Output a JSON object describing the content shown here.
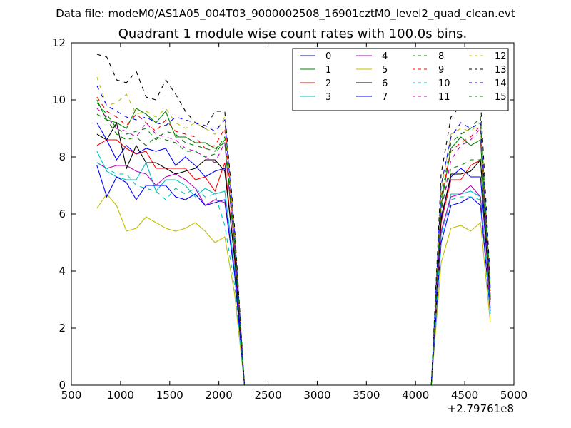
{
  "chart_data": {
    "type": "line",
    "suptitle": "Data file: modeM0/AS1A05_004T03_9000002508_16901cztM0_level2_quad_clean.evt",
    "title": "Quadrant 1 module wise count rates with 100.0s bins.",
    "xlabel": "",
    "ylabel": "",
    "x_offset_label": "+2.79761e8",
    "xlim": [
      500,
      5000
    ],
    "ylim": [
      0,
      12
    ],
    "xticks": [
      "500",
      "1000",
      "1500",
      "2000",
      "2500",
      "3000",
      "3500",
      "4000",
      "4500",
      "5000"
    ],
    "yticks": [
      "0",
      "2",
      "4",
      "6",
      "8",
      "10",
      "12"
    ],
    "legend_position": "top-right",
    "x": [
      760,
      860,
      960,
      1060,
      1160,
      1260,
      1360,
      1460,
      1560,
      1660,
      1760,
      1860,
      1960,
      2060,
      2160,
      2260,
      2360,
      2460,
      2560,
      2660,
      2760,
      2860,
      2960,
      3060,
      3160,
      3260,
      3360,
      3460,
      3560,
      3660,
      3760,
      3860,
      3960,
      4060,
      4160,
      4260,
      4360,
      4460,
      4560,
      4660,
      4760
    ],
    "series": [
      {
        "name": "0",
        "color": "#0000ff",
        "style": "solid",
        "values": [
          9.2,
          8.6,
          7.9,
          8.4,
          8.1,
          8.3,
          8.2,
          8.3,
          7.7,
          8.0,
          7.7,
          7.3,
          7.5,
          7.6,
          4.5,
          0,
          0,
          0,
          0,
          0,
          0,
          0,
          0,
          0,
          0,
          0,
          0,
          0,
          0,
          0,
          0,
          0,
          0,
          0,
          0,
          5.9,
          7.3,
          7.6,
          7.3,
          7.3,
          3.0
        ]
      },
      {
        "name": "1",
        "color": "#008000",
        "style": "solid",
        "values": [
          10.0,
          9.3,
          9.2,
          9.0,
          9.7,
          9.5,
          9.2,
          9.6,
          8.7,
          8.7,
          8.5,
          8.5,
          8.3,
          8.5,
          4.8,
          0,
          0,
          0,
          0,
          0,
          0,
          0,
          0,
          0,
          0,
          0,
          0,
          0,
          0,
          0,
          0,
          0,
          0,
          0,
          0,
          6.3,
          8.3,
          8.7,
          8.4,
          8.6,
          3.1
        ]
      },
      {
        "name": "2",
        "color": "#ff0000",
        "style": "solid",
        "values": [
          8.4,
          8.6,
          8.6,
          8.3,
          8.1,
          8.2,
          7.6,
          7.6,
          7.6,
          7.6,
          7.2,
          7.3,
          6.8,
          7.8,
          4.4,
          0,
          0,
          0,
          0,
          0,
          0,
          0,
          0,
          0,
          0,
          0,
          0,
          0,
          0,
          0,
          0,
          0,
          0,
          0,
          0,
          5.7,
          7.2,
          7.2,
          7.7,
          7.9,
          2.9
        ]
      },
      {
        "name": "3",
        "color": "#00bfbf",
        "style": "solid",
        "values": [
          8.2,
          7.5,
          7.3,
          7.2,
          7.2,
          7.8,
          6.8,
          7.2,
          7.2,
          7.0,
          6.6,
          6.9,
          6.7,
          6.8,
          4.1,
          0,
          0,
          0,
          0,
          0,
          0,
          0,
          0,
          0,
          0,
          0,
          0,
          0,
          0,
          0,
          0,
          0,
          0,
          0,
          0,
          5.3,
          6.7,
          6.7,
          6.8,
          6.6,
          2.5
        ]
      },
      {
        "name": "4",
        "color": "#bf00bf",
        "style": "solid",
        "values": [
          7.8,
          7.6,
          7.7,
          7.7,
          7.5,
          7.4,
          7.0,
          7.3,
          7.4,
          7.2,
          6.9,
          6.3,
          6.5,
          6.4,
          3.9,
          0,
          0,
          0,
          0,
          0,
          0,
          0,
          0,
          0,
          0,
          0,
          0,
          0,
          0,
          0,
          0,
          0,
          0,
          0,
          0,
          5.4,
          6.6,
          6.7,
          7.0,
          6.6,
          2.7
        ]
      },
      {
        "name": "5",
        "color": "#bfbf00",
        "style": "solid",
        "values": [
          6.2,
          6.7,
          6.3,
          5.4,
          5.5,
          5.9,
          5.7,
          5.5,
          5.4,
          5.5,
          5.7,
          5.4,
          5.0,
          5.2,
          3.2,
          0,
          0,
          0,
          0,
          0,
          0,
          0,
          0,
          0,
          0,
          0,
          0,
          0,
          0,
          0,
          0,
          0,
          0,
          0,
          0,
          4.3,
          5.5,
          5.6,
          5.4,
          5.7,
          2.2
        ]
      },
      {
        "name": "6",
        "color": "#000000",
        "style": "solid",
        "values": [
          8.8,
          8.6,
          9.2,
          7.6,
          8.4,
          7.8,
          7.8,
          7.6,
          7.4,
          7.5,
          7.6,
          7.9,
          7.9,
          7.5,
          4.5,
          0,
          0,
          0,
          0,
          0,
          0,
          0,
          0,
          0,
          0,
          0,
          0,
          0,
          0,
          0,
          0,
          0,
          0,
          0,
          0,
          5.8,
          7.4,
          7.4,
          7.5,
          7.9,
          3.0
        ]
      },
      {
        "name": "7",
        "color": "#0000ff",
        "style": "solid",
        "values": [
          7.7,
          6.6,
          7.3,
          7.1,
          6.5,
          7.0,
          7.0,
          7.0,
          6.6,
          6.5,
          6.7,
          6.3,
          6.4,
          6.5,
          3.9,
          0,
          0,
          0,
          0,
          0,
          0,
          0,
          0,
          0,
          0,
          0,
          0,
          0,
          0,
          0,
          0,
          0,
          0,
          0,
          0,
          5.0,
          6.3,
          6.4,
          6.6,
          6.3,
          2.6
        ]
      },
      {
        "name": "8",
        "color": "#008000",
        "style": "dashed",
        "values": [
          9.5,
          9.3,
          8.8,
          8.6,
          8.7,
          8.4,
          8.7,
          8.6,
          8.5,
          8.2,
          8.2,
          8.0,
          8.1,
          8.6,
          4.9,
          0,
          0,
          0,
          0,
          0,
          0,
          0,
          0,
          0,
          0,
          0,
          0,
          0,
          0,
          0,
          0,
          0,
          0,
          0,
          0,
          6.2,
          7.6,
          7.7,
          7.9,
          7.9,
          3.1
        ]
      },
      {
        "name": "9",
        "color": "#ff0000",
        "style": "dashed",
        "values": [
          10.1,
          9.6,
          9.4,
          9.1,
          9.5,
          9.2,
          8.9,
          9.3,
          8.9,
          8.8,
          8.7,
          8.3,
          8.4,
          9.0,
          5.1,
          0,
          0,
          0,
          0,
          0,
          0,
          0,
          0,
          0,
          0,
          0,
          0,
          0,
          0,
          0,
          0,
          0,
          0,
          0,
          0,
          6.6,
          8.2,
          8.5,
          8.7,
          9.1,
          3.3
        ]
      },
      {
        "name": "10",
        "color": "#00bfbf",
        "style": "dashed",
        "values": [
          7.8,
          7.6,
          7.4,
          7.4,
          7.0,
          6.9,
          6.8,
          6.5,
          6.9,
          6.7,
          6.9,
          6.6,
          6.7,
          5.6,
          3.5,
          0,
          0,
          0,
          0,
          0,
          0,
          0,
          0,
          0,
          0,
          0,
          0,
          0,
          0,
          0,
          0,
          0,
          0,
          0,
          0,
          5.2,
          6.5,
          6.6,
          6.6,
          6.5,
          2.7
        ]
      },
      {
        "name": "11",
        "color": "#bf00bf",
        "style": "dashed",
        "values": [
          9.7,
          9.4,
          9.0,
          8.9,
          8.7,
          9.2,
          8.8,
          8.7,
          8.6,
          8.3,
          8.2,
          8.0,
          7.8,
          8.5,
          4.8,
          0,
          0,
          0,
          0,
          0,
          0,
          0,
          0,
          0,
          0,
          0,
          0,
          0,
          0,
          0,
          0,
          0,
          0,
          0,
          0,
          6.1,
          7.9,
          8.4,
          8.6,
          9.0,
          3.2
        ]
      },
      {
        "name": "12",
        "color": "#bfbf00",
        "style": "dashed",
        "values": [
          10.8,
          9.8,
          9.9,
          10.2,
          9.5,
          9.6,
          9.4,
          9.7,
          9.2,
          9.0,
          9.2,
          9.0,
          8.8,
          9.4,
          5.3,
          0,
          0,
          0,
          0,
          0,
          0,
          0,
          0,
          0,
          0,
          0,
          0,
          0,
          0,
          0,
          0,
          0,
          0,
          0,
          0,
          6.8,
          8.8,
          9.0,
          8.9,
          9.2,
          3.5
        ]
      },
      {
        "name": "13",
        "color": "#000000",
        "style": "dashed",
        "values": [
          11.6,
          11.5,
          10.7,
          10.6,
          11.0,
          10.1,
          10.0,
          10.7,
          10.2,
          9.6,
          9.2,
          9.0,
          9.6,
          9.6,
          5.5,
          0,
          0,
          0,
          0,
          0,
          0,
          0,
          0,
          0,
          0,
          0,
          0,
          0,
          0,
          0,
          0,
          0,
          0,
          0,
          0,
          7.4,
          9.4,
          9.8,
          10.0,
          10.0,
          3.6
        ]
      },
      {
        "name": "14",
        "color": "#0000ff",
        "style": "dashed",
        "values": [
          10.5,
          9.8,
          9.6,
          9.4,
          9.3,
          9.4,
          9.2,
          9.1,
          9.4,
          9.3,
          9.2,
          9.1,
          8.9,
          9.3,
          5.3,
          0,
          0,
          0,
          0,
          0,
          0,
          0,
          0,
          0,
          0,
          0,
          0,
          0,
          0,
          0,
          0,
          0,
          0,
          0,
          0,
          7.0,
          8.7,
          9.2,
          9.0,
          9.2,
          3.4
        ]
      },
      {
        "name": "15",
        "color": "#008000",
        "style": "dashed",
        "values": [
          9.9,
          9.5,
          9.0,
          8.8,
          8.9,
          9.0,
          8.6,
          8.9,
          8.8,
          8.5,
          8.4,
          8.3,
          8.2,
          8.7,
          5.0,
          0,
          0,
          0,
          0,
          0,
          0,
          0,
          0,
          0,
          0,
          0,
          0,
          0,
          0,
          0,
          0,
          0,
          0,
          0,
          0,
          6.5,
          8.5,
          8.8,
          9.0,
          9.4,
          3.4
        ]
      }
    ]
  }
}
